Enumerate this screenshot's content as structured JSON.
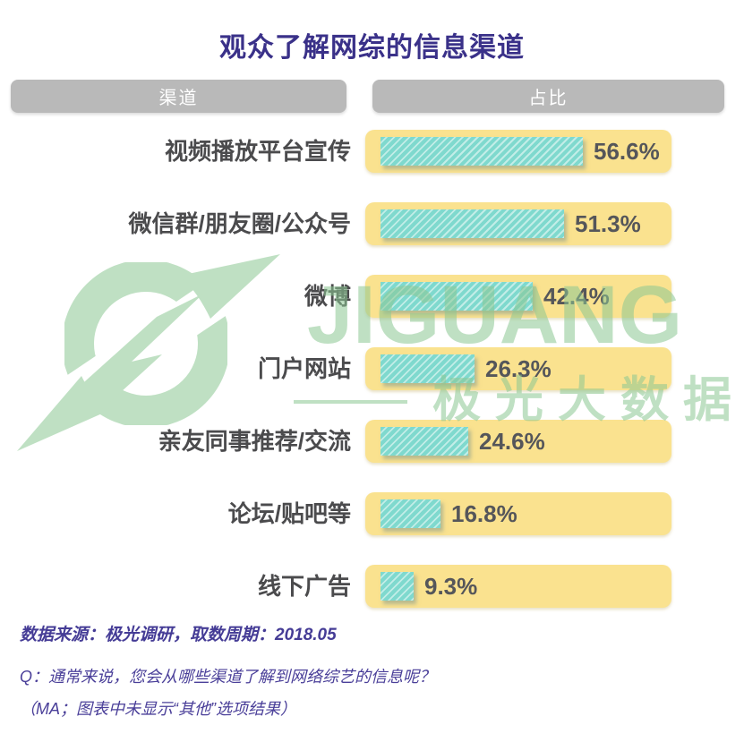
{
  "title": "观众了解网综的信息渠道",
  "table_headers": {
    "channel": "渠道",
    "share": "占比"
  },
  "chart_data": {
    "type": "bar",
    "orientation": "horizontal",
    "title": "观众了解网综的信息渠道",
    "column_headers": [
      "渠道",
      "占比"
    ],
    "categories": [
      "视频播放平台宣传",
      "微信群/朋友圈/公众号",
      "微博",
      "门户网站",
      "亲友同事推荐/交流",
      "论坛/贴吧等",
      "线下广告"
    ],
    "values": [
      56.6,
      51.3,
      42.4,
      26.3,
      24.6,
      16.8,
      9.3
    ],
    "labels": [
      "56.6%",
      "51.3%",
      "42.4%",
      "26.3%",
      "24.6%",
      "16.8%",
      "9.3%"
    ],
    "xlim": [
      0,
      60
    ],
    "grid": false,
    "legend": "none"
  },
  "watermark": {
    "logo": "jiguang-logo",
    "brand": "JIGUANG",
    "tagline": "极光大数据"
  },
  "footer": {
    "source": "数据来源：极光调研，取数周期：2018.05",
    "question": "Q：通常来说，您会从哪些渠道了解到网络综艺的信息呢？",
    "note": "（MA；图表中未显示“其他”选项结果）"
  },
  "colors": {
    "title_text": "#3a3189",
    "header_bg": "#b9b9b9",
    "header_text": "#ffffff",
    "row_bg": "#fae28f",
    "bar_fill": "#7fd9ce",
    "bar_hatch": "#c2ede7",
    "category_text": "#4b4b4d",
    "value_text": "#55565a",
    "watermark_green": "#8cc893",
    "footer_text": "#453c96"
  }
}
